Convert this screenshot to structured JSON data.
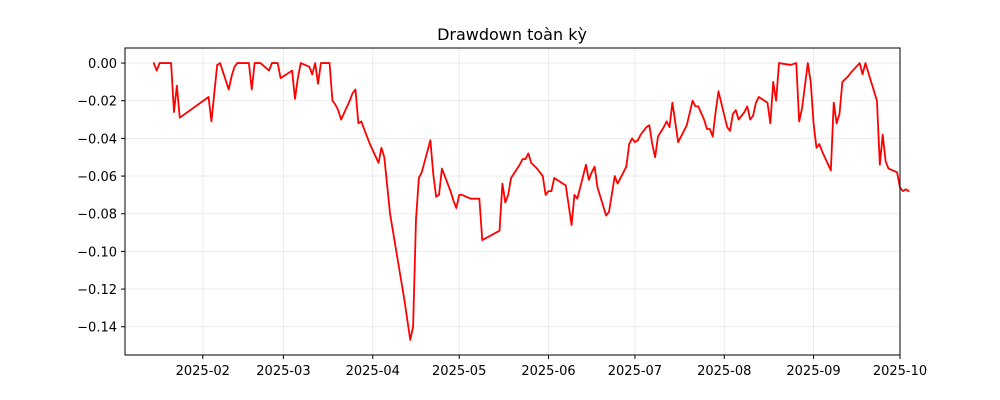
{
  "chart_data": {
    "type": "line",
    "title": "Drawdown toàn kỳ",
    "xlabel": "",
    "ylabel": "",
    "grid": true,
    "xlim": [
      "2025-01-05",
      "2025-10-01"
    ],
    "ylim": [
      -0.155,
      0.008
    ],
    "x_ticks": [
      "2025-02-01",
      "2025-03-01",
      "2025-04-01",
      "2025-05-01",
      "2025-06-01",
      "2025-07-01",
      "2025-08-01",
      "2025-09-01",
      "2025-10-01"
    ],
    "x_tick_labels": [
      "2025-02",
      "2025-03",
      "2025-04",
      "2025-05",
      "2025-06",
      "2025-07",
      "2025-08",
      "2025-09",
      "2025-10"
    ],
    "y_ticks": [
      0.0,
      -0.02,
      -0.04,
      -0.06,
      -0.08,
      -0.1,
      -0.12,
      -0.14
    ],
    "y_tick_labels": [
      "0.00",
      "−0.02",
      "−0.04",
      "−0.06",
      "−0.08",
      "−0.10",
      "−0.12",
      "−0.14"
    ],
    "series": [
      {
        "color": "#ff0000",
        "points": [
          [
            "2025-01-15",
            0.0
          ],
          [
            "2025-01-16",
            -0.004
          ],
          [
            "2025-01-17",
            0.0
          ],
          [
            "2025-01-20",
            0.0
          ],
          [
            "2025-01-21",
            0.0
          ],
          [
            "2025-01-22",
            -0.026
          ],
          [
            "2025-01-23",
            -0.012
          ],
          [
            "2025-01-24",
            -0.029
          ],
          [
            "2025-02-03",
            -0.018
          ],
          [
            "2025-02-04",
            -0.031
          ],
          [
            "2025-02-05",
            -0.016
          ],
          [
            "2025-02-06",
            -0.001
          ],
          [
            "2025-02-07",
            0.0
          ],
          [
            "2025-02-10",
            -0.014
          ],
          [
            "2025-02-11",
            -0.007
          ],
          [
            "2025-02-12",
            -0.002
          ],
          [
            "2025-02-13",
            0.0
          ],
          [
            "2025-02-14",
            0.0
          ],
          [
            "2025-02-17",
            0.0
          ],
          [
            "2025-02-18",
            -0.014
          ],
          [
            "2025-02-19",
            0.0
          ],
          [
            "2025-02-20",
            0.0
          ],
          [
            "2025-02-21",
            0.0
          ],
          [
            "2025-02-24",
            -0.004
          ],
          [
            "2025-02-25",
            0.0
          ],
          [
            "2025-02-26",
            0.0
          ],
          [
            "2025-02-27",
            0.0
          ],
          [
            "2025-02-28",
            -0.008
          ],
          [
            "2025-03-03",
            -0.005
          ],
          [
            "2025-03-04",
            -0.004
          ],
          [
            "2025-03-05",
            -0.019
          ],
          [
            "2025-03-06",
            -0.008
          ],
          [
            "2025-03-07",
            0.0
          ],
          [
            "2025-03-10",
            -0.002
          ],
          [
            "2025-03-11",
            -0.006
          ],
          [
            "2025-03-12",
            0.0
          ],
          [
            "2025-03-13",
            -0.011
          ],
          [
            "2025-03-14",
            0.0
          ],
          [
            "2025-03-17",
            0.0
          ],
          [
            "2025-03-18",
            -0.02
          ],
          [
            "2025-03-19",
            -0.022
          ],
          [
            "2025-03-20",
            -0.025
          ],
          [
            "2025-03-21",
            -0.03
          ],
          [
            "2025-03-24",
            -0.02
          ],
          [
            "2025-03-25",
            -0.016
          ],
          [
            "2025-03-26",
            -0.014
          ],
          [
            "2025-03-27",
            -0.032
          ],
          [
            "2025-03-28",
            -0.031
          ],
          [
            "2025-03-31",
            -0.043
          ],
          [
            "2025-04-03",
            -0.053
          ],
          [
            "2025-04-04",
            -0.045
          ],
          [
            "2025-04-05",
            -0.05
          ],
          [
            "2025-04-07",
            -0.08
          ],
          [
            "2025-04-12",
            -0.126
          ],
          [
            "2025-04-14",
            -0.147
          ],
          [
            "2025-04-15",
            -0.14
          ],
          [
            "2025-04-16",
            -0.083
          ],
          [
            "2025-04-17",
            -0.061
          ],
          [
            "2025-04-18",
            -0.058
          ],
          [
            "2025-04-21",
            -0.041
          ],
          [
            "2025-04-22",
            -0.059
          ],
          [
            "2025-04-23",
            -0.071
          ],
          [
            "2025-04-24",
            -0.07
          ],
          [
            "2025-04-25",
            -0.056
          ],
          [
            "2025-04-28",
            -0.068
          ],
          [
            "2025-04-29",
            -0.073
          ],
          [
            "2025-04-30",
            -0.077
          ],
          [
            "2025-05-01",
            -0.07
          ],
          [
            "2025-05-02",
            -0.07
          ],
          [
            "2025-05-05",
            -0.072
          ],
          [
            "2025-05-06",
            -0.072
          ],
          [
            "2025-05-07",
            -0.072
          ],
          [
            "2025-05-08",
            -0.072
          ],
          [
            "2025-05-09",
            -0.094
          ],
          [
            "2025-05-15",
            -0.089
          ],
          [
            "2025-05-16",
            -0.064
          ],
          [
            "2025-05-17",
            -0.074
          ],
          [
            "2025-05-18",
            -0.07
          ],
          [
            "2025-05-19",
            -0.061
          ],
          [
            "2025-05-22",
            -0.054
          ],
          [
            "2025-05-23",
            -0.051
          ],
          [
            "2025-05-24",
            -0.051
          ],
          [
            "2025-05-25",
            -0.048
          ],
          [
            "2025-05-26",
            -0.053
          ],
          [
            "2025-05-28",
            -0.056
          ],
          [
            "2025-05-30",
            -0.06
          ],
          [
            "2025-05-31",
            -0.07
          ],
          [
            "2025-06-01",
            -0.068
          ],
          [
            "2025-06-02",
            -0.068
          ],
          [
            "2025-06-03",
            -0.061
          ],
          [
            "2025-06-05",
            -0.063
          ],
          [
            "2025-06-07",
            -0.065
          ],
          [
            "2025-06-09",
            -0.086
          ],
          [
            "2025-06-10",
            -0.07
          ],
          [
            "2025-06-11",
            -0.072
          ],
          [
            "2025-06-14",
            -0.054
          ],
          [
            "2025-06-15",
            -0.062
          ],
          [
            "2025-06-16",
            -0.058
          ],
          [
            "2025-06-17",
            -0.055
          ],
          [
            "2025-06-18",
            -0.066
          ],
          [
            "2025-06-21",
            -0.081
          ],
          [
            "2025-06-22",
            -0.079
          ],
          [
            "2025-06-24",
            -0.06
          ],
          [
            "2025-06-25",
            -0.064
          ],
          [
            "2025-06-26",
            -0.061
          ],
          [
            "2025-06-28",
            -0.055
          ],
          [
            "2025-06-29",
            -0.043
          ],
          [
            "2025-06-30",
            -0.04
          ],
          [
            "2025-07-01",
            -0.042
          ],
          [
            "2025-07-02",
            -0.041
          ],
          [
            "2025-07-03",
            -0.038
          ],
          [
            "2025-07-05",
            -0.034
          ],
          [
            "2025-07-06",
            -0.033
          ],
          [
            "2025-07-07",
            -0.043
          ],
          [
            "2025-07-08",
            -0.05
          ],
          [
            "2025-07-09",
            -0.039
          ],
          [
            "2025-07-11",
            -0.034
          ],
          [
            "2025-07-12",
            -0.031
          ],
          [
            "2025-07-13",
            -0.034
          ],
          [
            "2025-07-14",
            -0.021
          ],
          [
            "2025-07-16",
            -0.042
          ],
          [
            "2025-07-19",
            -0.033
          ],
          [
            "2025-07-21",
            -0.02
          ],
          [
            "2025-07-22",
            -0.023
          ],
          [
            "2025-07-23",
            -0.023
          ],
          [
            "2025-07-25",
            -0.03
          ],
          [
            "2025-07-26",
            -0.035
          ],
          [
            "2025-07-27",
            -0.035
          ],
          [
            "2025-07-28",
            -0.039
          ],
          [
            "2025-07-29",
            -0.026
          ],
          [
            "2025-07-30",
            -0.015
          ],
          [
            "2025-08-02",
            -0.034
          ],
          [
            "2025-08-03",
            -0.036
          ],
          [
            "2025-08-04",
            -0.027
          ],
          [
            "2025-08-05",
            -0.025
          ],
          [
            "2025-08-06",
            -0.03
          ],
          [
            "2025-08-08",
            -0.026
          ],
          [
            "2025-08-09",
            -0.023
          ],
          [
            "2025-08-10",
            -0.03
          ],
          [
            "2025-08-11",
            -0.028
          ],
          [
            "2025-08-12",
            -0.021
          ],
          [
            "2025-08-13",
            -0.018
          ],
          [
            "2025-08-15",
            -0.02
          ],
          [
            "2025-08-16",
            -0.021
          ],
          [
            "2025-08-17",
            -0.032
          ],
          [
            "2025-08-18",
            -0.01
          ],
          [
            "2025-08-19",
            -0.02
          ],
          [
            "2025-08-20",
            0.0
          ],
          [
            "2025-08-24",
            -0.001
          ],
          [
            "2025-08-26",
            0.0
          ],
          [
            "2025-08-27",
            -0.031
          ],
          [
            "2025-08-28",
            -0.024
          ],
          [
            "2025-08-30",
            0.0
          ],
          [
            "2025-08-31",
            -0.01
          ],
          [
            "2025-09-01",
            -0.032
          ],
          [
            "2025-09-02",
            -0.045
          ],
          [
            "2025-09-03",
            -0.043
          ],
          [
            "2025-09-04",
            -0.047
          ],
          [
            "2025-09-07",
            -0.057
          ],
          [
            "2025-09-08",
            -0.021
          ],
          [
            "2025-09-09",
            -0.032
          ],
          [
            "2025-09-10",
            -0.027
          ],
          [
            "2025-09-11",
            -0.01
          ],
          [
            "2025-09-13",
            -0.007
          ],
          [
            "2025-09-14",
            -0.005
          ],
          [
            "2025-09-17",
            0.0
          ],
          [
            "2025-09-18",
            -0.006
          ],
          [
            "2025-09-19",
            0.0
          ],
          [
            "2025-09-23",
            -0.02
          ],
          [
            "2025-09-24",
            -0.054
          ],
          [
            "2025-09-25",
            -0.038
          ],
          [
            "2025-09-26",
            -0.052
          ],
          [
            "2025-09-27",
            -0.056
          ],
          [
            "2025-09-30",
            -0.058
          ],
          [
            "2025-10-01",
            -0.066
          ],
          [
            "2025-10-02",
            -0.068
          ],
          [
            "2025-10-03",
            -0.067
          ],
          [
            "2025-10-04",
            -0.068
          ]
        ]
      }
    ]
  }
}
